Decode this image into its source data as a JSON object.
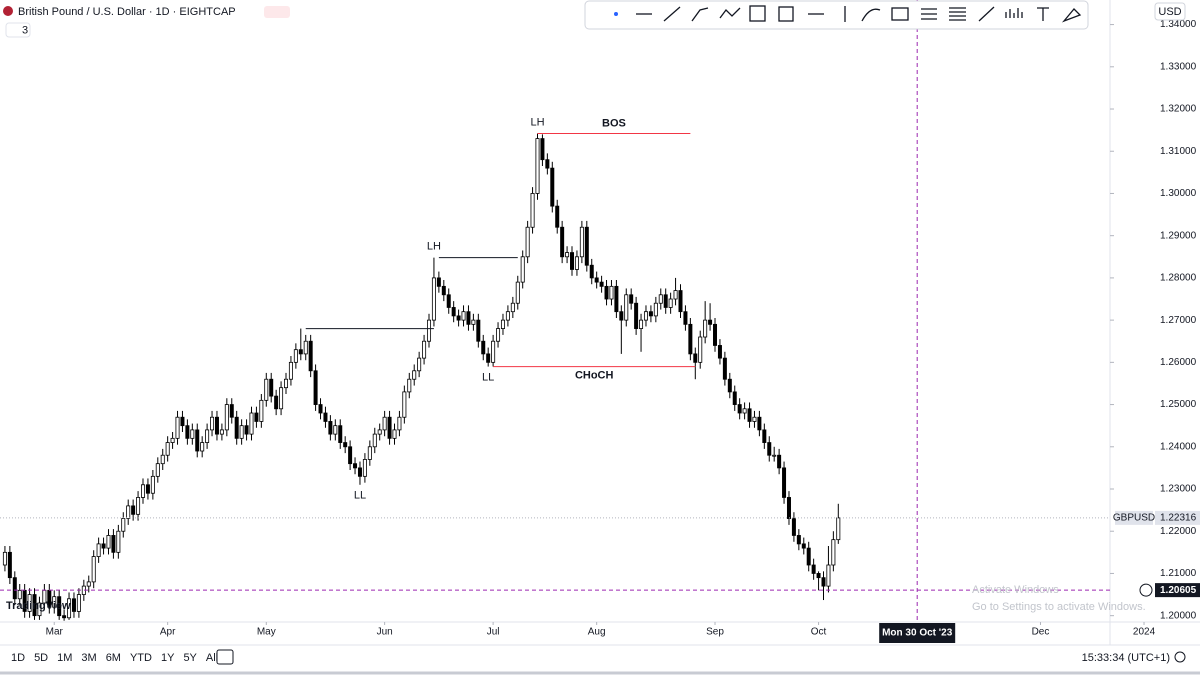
{
  "header": {
    "title": "British Pound / U.S. Dollar · 1D · EIGHTCAP",
    "indicators": 3,
    "currency": "USD"
  },
  "chart_data": {
    "type": "candlestick",
    "symbol": "GBPUSD",
    "up_color": "#ffffff",
    "down_color": "#000000",
    "outline": "#000000",
    "xlim": [
      -1,
      224.1
    ],
    "ylim": [
      1.1985,
      1.3399
    ],
    "yticks": [
      {
        "value": 1.2,
        "label": "1.20000"
      },
      {
        "value": 1.21,
        "label": "1.21000"
      },
      {
        "value": 1.22,
        "label": "1.22000"
      },
      {
        "value": 1.23,
        "label": "1.23000"
      },
      {
        "value": 1.24,
        "label": "1.24000"
      },
      {
        "value": 1.25,
        "label": "1.25000"
      },
      {
        "value": 1.26,
        "label": "1.26000"
      },
      {
        "value": 1.27,
        "label": "1.27000"
      },
      {
        "value": 1.28,
        "label": "1.28000"
      },
      {
        "value": 1.29,
        "label": "1.29000"
      },
      {
        "value": 1.3,
        "label": "1.30000"
      },
      {
        "value": 1.31,
        "label": "1.31000"
      },
      {
        "value": 1.32,
        "label": "1.32000"
      },
      {
        "value": 1.33,
        "label": "1.33000"
      },
      {
        "value": 1.34,
        "label": "1.34000"
      }
    ],
    "xticks": [
      {
        "value": 10,
        "label": "Mar"
      },
      {
        "value": 33,
        "label": "Apr"
      },
      {
        "value": 53,
        "label": "May"
      },
      {
        "value": 77,
        "label": "Jun"
      },
      {
        "value": 99,
        "label": "Jul"
      },
      {
        "value": 120,
        "label": "Aug"
      },
      {
        "value": 144,
        "label": "Sep"
      },
      {
        "value": 165,
        "label": "Oct"
      },
      {
        "value": 210,
        "label": "Dec"
      },
      {
        "value": 231,
        "label": "2024"
      }
    ],
    "ohlc": [
      [
        1.212,
        1.2165,
        1.2105,
        1.215
      ],
      [
        1.215,
        1.2165,
        1.2075,
        1.209
      ],
      [
        1.209,
        1.2105,
        1.2025,
        1.204
      ],
      [
        1.204,
        1.2075,
        1.2025,
        1.206
      ],
      [
        1.206,
        1.2075,
        1.1995,
        1.201
      ],
      [
        1.201,
        1.2065,
        1.1995,
        1.205
      ],
      [
        1.205,
        1.2065,
        1.199,
        1.2
      ],
      [
        1.2,
        1.2045,
        1.199,
        1.203
      ],
      [
        1.203,
        1.2075,
        1.2015,
        1.206
      ],
      [
        1.206,
        1.2075,
        1.2005,
        1.202
      ],
      [
        1.202,
        1.206,
        1.2005,
        1.2045
      ],
      [
        1.2045,
        1.206,
        1.199,
        1.2
      ],
      [
        1.2,
        1.2015,
        1.1988,
        1.1995
      ],
      [
        1.1995,
        1.2055,
        1.199,
        1.204
      ],
      [
        1.204,
        1.2055,
        1.1995,
        1.201
      ],
      [
        1.201,
        1.2065,
        1.1995,
        1.205
      ],
      [
        1.205,
        1.2085,
        1.2035,
        1.207
      ],
      [
        1.207,
        1.2095,
        1.2055,
        1.208
      ],
      [
        1.208,
        1.2155,
        1.2065,
        1.214
      ],
      [
        1.214,
        1.2185,
        1.2125,
        1.217
      ],
      [
        1.217,
        1.2185,
        1.2145,
        1.216
      ],
      [
        1.216,
        1.2205,
        1.2145,
        1.219
      ],
      [
        1.219,
        1.2205,
        1.2135,
        1.215
      ],
      [
        1.215,
        1.2215,
        1.2135,
        1.22
      ],
      [
        1.22,
        1.2245,
        1.2185,
        1.223
      ],
      [
        1.223,
        1.2275,
        1.2215,
        1.226
      ],
      [
        1.226,
        1.2275,
        1.2225,
        1.224
      ],
      [
        1.224,
        1.2295,
        1.2225,
        1.228
      ],
      [
        1.228,
        1.2325,
        1.2265,
        1.231
      ],
      [
        1.231,
        1.2325,
        1.2275,
        1.229
      ],
      [
        1.229,
        1.2345,
        1.2275,
        1.233
      ],
      [
        1.233,
        1.2375,
        1.2315,
        1.236
      ],
      [
        1.236,
        1.2395,
        1.2345,
        1.238
      ],
      [
        1.238,
        1.2425,
        1.2365,
        1.241
      ],
      [
        1.241,
        1.2435,
        1.2395,
        1.242
      ],
      [
        1.242,
        1.2485,
        1.2405,
        1.247
      ],
      [
        1.247,
        1.2485,
        1.2435,
        1.245
      ],
      [
        1.245,
        1.2465,
        1.2405,
        1.242
      ],
      [
        1.242,
        1.2455,
        1.2405,
        1.244
      ],
      [
        1.244,
        1.2455,
        1.2375,
        1.239
      ],
      [
        1.239,
        1.2425,
        1.2375,
        1.241
      ],
      [
        1.241,
        1.2455,
        1.2395,
        1.244
      ],
      [
        1.244,
        1.2485,
        1.2425,
        1.247
      ],
      [
        1.247,
        1.2485,
        1.2415,
        1.243
      ],
      [
        1.243,
        1.2455,
        1.2415,
        1.244
      ],
      [
        1.244,
        1.2515,
        1.2425,
        1.25
      ],
      [
        1.25,
        1.2515,
        1.2455,
        1.247
      ],
      [
        1.247,
        1.2485,
        1.2405,
        1.242
      ],
      [
        1.242,
        1.2465,
        1.2405,
        1.245
      ],
      [
        1.245,
        1.2465,
        1.2415,
        1.243
      ],
      [
        1.243,
        1.2495,
        1.2415,
        1.248
      ],
      [
        1.248,
        1.2495,
        1.2445,
        1.246
      ],
      [
        1.246,
        1.2525,
        1.2445,
        1.251
      ],
      [
        1.251,
        1.2575,
        1.2495,
        1.256
      ],
      [
        1.256,
        1.2575,
        1.2505,
        1.252
      ],
      [
        1.252,
        1.2535,
        1.2475,
        1.249
      ],
      [
        1.249,
        1.2555,
        1.2475,
        1.254
      ],
      [
        1.254,
        1.2575,
        1.2525,
        1.256
      ],
      [
        1.256,
        1.2615,
        1.2545,
        1.26
      ],
      [
        1.26,
        1.2645,
        1.2585,
        1.263
      ],
      [
        1.263,
        1.268,
        1.2605,
        1.262
      ],
      [
        1.262,
        1.2665,
        1.2605,
        1.265
      ],
      [
        1.265,
        1.2665,
        1.2565,
        1.258
      ],
      [
        1.258,
        1.2595,
        1.2485,
        1.25
      ],
      [
        1.25,
        1.2515,
        1.2465,
        1.248
      ],
      [
        1.248,
        1.2495,
        1.2445,
        1.246
      ],
      [
        1.246,
        1.2475,
        1.2415,
        1.243
      ],
      [
        1.243,
        1.2465,
        1.2415,
        1.245
      ],
      [
        1.245,
        1.2465,
        1.2395,
        1.241
      ],
      [
        1.241,
        1.2425,
        1.2385,
        1.24
      ],
      [
        1.24,
        1.2415,
        1.2345,
        1.236
      ],
      [
        1.236,
        1.2375,
        1.2335,
        1.235
      ],
      [
        1.235,
        1.2365,
        1.231,
        1.233
      ],
      [
        1.233,
        1.2385,
        1.2315,
        1.237
      ],
      [
        1.237,
        1.2415,
        1.2355,
        1.24
      ],
      [
        1.24,
        1.2445,
        1.2385,
        1.243
      ],
      [
        1.243,
        1.2455,
        1.2415,
        1.244
      ],
      [
        1.244,
        1.2485,
        1.2425,
        1.247
      ],
      [
        1.247,
        1.2485,
        1.2405,
        1.242
      ],
      [
        1.242,
        1.2455,
        1.2405,
        1.244
      ],
      [
        1.244,
        1.2485,
        1.2425,
        1.247
      ],
      [
        1.247,
        1.2545,
        1.2455,
        1.253
      ],
      [
        1.253,
        1.2575,
        1.2515,
        1.256
      ],
      [
        1.256,
        1.2595,
        1.2545,
        1.258
      ],
      [
        1.258,
        1.2625,
        1.2565,
        1.261
      ],
      [
        1.261,
        1.2665,
        1.2595,
        1.265
      ],
      [
        1.265,
        1.2715,
        1.2635,
        1.27
      ],
      [
        1.27,
        1.2848,
        1.2685,
        1.28
      ],
      [
        1.28,
        1.2815,
        1.2765,
        1.278
      ],
      [
        1.278,
        1.2795,
        1.2745,
        1.276
      ],
      [
        1.276,
        1.2775,
        1.2715,
        1.273
      ],
      [
        1.273,
        1.2745,
        1.2695,
        1.271
      ],
      [
        1.271,
        1.2725,
        1.2685,
        1.27
      ],
      [
        1.27,
        1.2735,
        1.2685,
        1.272
      ],
      [
        1.272,
        1.2735,
        1.2675,
        1.269
      ],
      [
        1.269,
        1.2715,
        1.2675,
        1.27
      ],
      [
        1.27,
        1.2715,
        1.2635,
        1.265
      ],
      [
        1.265,
        1.2665,
        1.2605,
        1.262
      ],
      [
        1.262,
        1.2635,
        1.259,
        1.26
      ],
      [
        1.26,
        1.2665,
        1.259,
        1.265
      ],
      [
        1.265,
        1.2695,
        1.2635,
        1.268
      ],
      [
        1.268,
        1.2715,
        1.2665,
        1.27
      ],
      [
        1.27,
        1.2735,
        1.2685,
        1.272
      ],
      [
        1.272,
        1.2755,
        1.2705,
        1.274
      ],
      [
        1.274,
        1.2805,
        1.2725,
        1.279
      ],
      [
        1.279,
        1.2865,
        1.2775,
        1.285
      ],
      [
        1.285,
        1.2935,
        1.2835,
        1.292
      ],
      [
        1.292,
        1.3015,
        1.2905,
        1.3
      ],
      [
        1.3,
        1.3142,
        1.2985,
        1.313
      ],
      [
        1.313,
        1.314,
        1.3065,
        1.308
      ],
      [
        1.308,
        1.3095,
        1.3045,
        1.306
      ],
      [
        1.306,
        1.3075,
        1.2955,
        1.297
      ],
      [
        1.297,
        1.2985,
        1.2905,
        1.292
      ],
      [
        1.292,
        1.2935,
        1.2835,
        1.285
      ],
      [
        1.285,
        1.2875,
        1.2835,
        1.286
      ],
      [
        1.286,
        1.2875,
        1.2805,
        1.282
      ],
      [
        1.282,
        1.2865,
        1.2805,
        1.285
      ],
      [
        1.285,
        1.2935,
        1.2835,
        1.292
      ],
      [
        1.292,
        1.2935,
        1.2815,
        1.283
      ],
      [
        1.283,
        1.2845,
        1.2785,
        1.28
      ],
      [
        1.28,
        1.2815,
        1.2775,
        1.279
      ],
      [
        1.279,
        1.2805,
        1.2765,
        1.278
      ],
      [
        1.278,
        1.2795,
        1.2735,
        1.275
      ],
      [
        1.275,
        1.2795,
        1.2735,
        1.278
      ],
      [
        1.278,
        1.2795,
        1.2705,
        1.272
      ],
      [
        1.272,
        1.2735,
        1.262,
        1.27
      ],
      [
        1.27,
        1.2775,
        1.2685,
        1.276
      ],
      [
        1.276,
        1.2775,
        1.2725,
        1.274
      ],
      [
        1.274,
        1.2755,
        1.2665,
        1.268
      ],
      [
        1.268,
        1.2715,
        1.2625,
        1.27
      ],
      [
        1.27,
        1.2735,
        1.2685,
        1.272
      ],
      [
        1.272,
        1.2735,
        1.2695,
        1.271
      ],
      [
        1.271,
        1.2755,
        1.2695,
        1.274
      ],
      [
        1.274,
        1.2775,
        1.2725,
        1.276
      ],
      [
        1.276,
        1.2775,
        1.2715,
        1.273
      ],
      [
        1.273,
        1.2765,
        1.2715,
        1.275
      ],
      [
        1.275,
        1.28,
        1.2735,
        1.277
      ],
      [
        1.277,
        1.2785,
        1.2705,
        1.272
      ],
      [
        1.272,
        1.2735,
        1.2675,
        1.269
      ],
      [
        1.269,
        1.2705,
        1.2605,
        1.262
      ],
      [
        1.262,
        1.2635,
        1.256,
        1.26
      ],
      [
        1.26,
        1.2675,
        1.2585,
        1.266
      ],
      [
        1.266,
        1.2745,
        1.2645,
        1.27
      ],
      [
        1.27,
        1.274,
        1.2675,
        1.269
      ],
      [
        1.269,
        1.2705,
        1.2625,
        1.264
      ],
      [
        1.264,
        1.2655,
        1.2595,
        1.261
      ],
      [
        1.261,
        1.2625,
        1.2545,
        1.256
      ],
      [
        1.256,
        1.2575,
        1.2515,
        1.253
      ],
      [
        1.253,
        1.2545,
        1.2485,
        1.25
      ],
      [
        1.25,
        1.2515,
        1.2465,
        1.248
      ],
      [
        1.248,
        1.2505,
        1.2465,
        1.249
      ],
      [
        1.249,
        1.2505,
        1.2445,
        1.246
      ],
      [
        1.246,
        1.2485,
        1.2445,
        1.247
      ],
      [
        1.247,
        1.2485,
        1.2425,
        1.244
      ],
      [
        1.244,
        1.2455,
        1.2395,
        1.241
      ],
      [
        1.241,
        1.2425,
        1.2365,
        1.238
      ],
      [
        1.238,
        1.24,
        1.2365,
        1.238
      ],
      [
        1.238,
        1.2395,
        1.2335,
        1.235
      ],
      [
        1.235,
        1.2365,
        1.2265,
        1.228
      ],
      [
        1.228,
        1.2295,
        1.2215,
        1.223
      ],
      [
        1.223,
        1.2245,
        1.2175,
        1.219
      ],
      [
        1.219,
        1.2205,
        1.2155,
        1.217
      ],
      [
        1.217,
        1.2185,
        1.2145,
        1.216
      ],
      [
        1.216,
        1.2175,
        1.2105,
        1.212
      ],
      [
        1.212,
        1.2135,
        1.2085,
        1.21
      ],
      [
        1.21,
        1.2105,
        1.206,
        1.209
      ],
      [
        1.209,
        1.2105,
        1.2037,
        1.207
      ],
      [
        1.207,
        1.2165,
        1.2055,
        1.212
      ],
      [
        1.212,
        1.22,
        1.2105,
        1.218
      ],
      [
        1.218,
        1.2265,
        1.217,
        1.22316
      ]
    ],
    "lines": [
      {
        "price": 1.268,
        "from": 61,
        "to": 87,
        "color": "#131722"
      },
      {
        "price": 1.2848,
        "from": 88,
        "to": 104,
        "color": "#131722"
      },
      {
        "price": 1.3142,
        "from": 108,
        "to": 139,
        "color": "#f23645",
        "label": "BOS"
      },
      {
        "price": 1.259,
        "from": 99,
        "to": 140,
        "color": "#f23645",
        "label": "CHoCH"
      }
    ],
    "pivots": [
      {
        "label": "LH",
        "bar": 108,
        "side": "above"
      },
      {
        "label": "LH",
        "bar": 87,
        "side": "above"
      },
      {
        "label": "LL",
        "bar": 72,
        "side": "below"
      },
      {
        "label": "LL",
        "bar": 98,
        "side": "below"
      }
    ],
    "last_price": {
      "name": "GBPUSD",
      "value": 1.22316
    },
    "crosshair": {
      "price": 1.20605,
      "bar": 185,
      "label": "Mon 30 Oct '23"
    }
  },
  "footer": {
    "ranges": [
      "1D",
      "5D",
      "1M",
      "3M",
      "6M",
      "YTD",
      "1Y",
      "5Y",
      "All"
    ],
    "clock": "15:33:34 (UTC+1)"
  },
  "logo": "TradingView",
  "watermark": {
    "title": "Activate Windows",
    "text": "Go to Settings to activate Windows."
  }
}
